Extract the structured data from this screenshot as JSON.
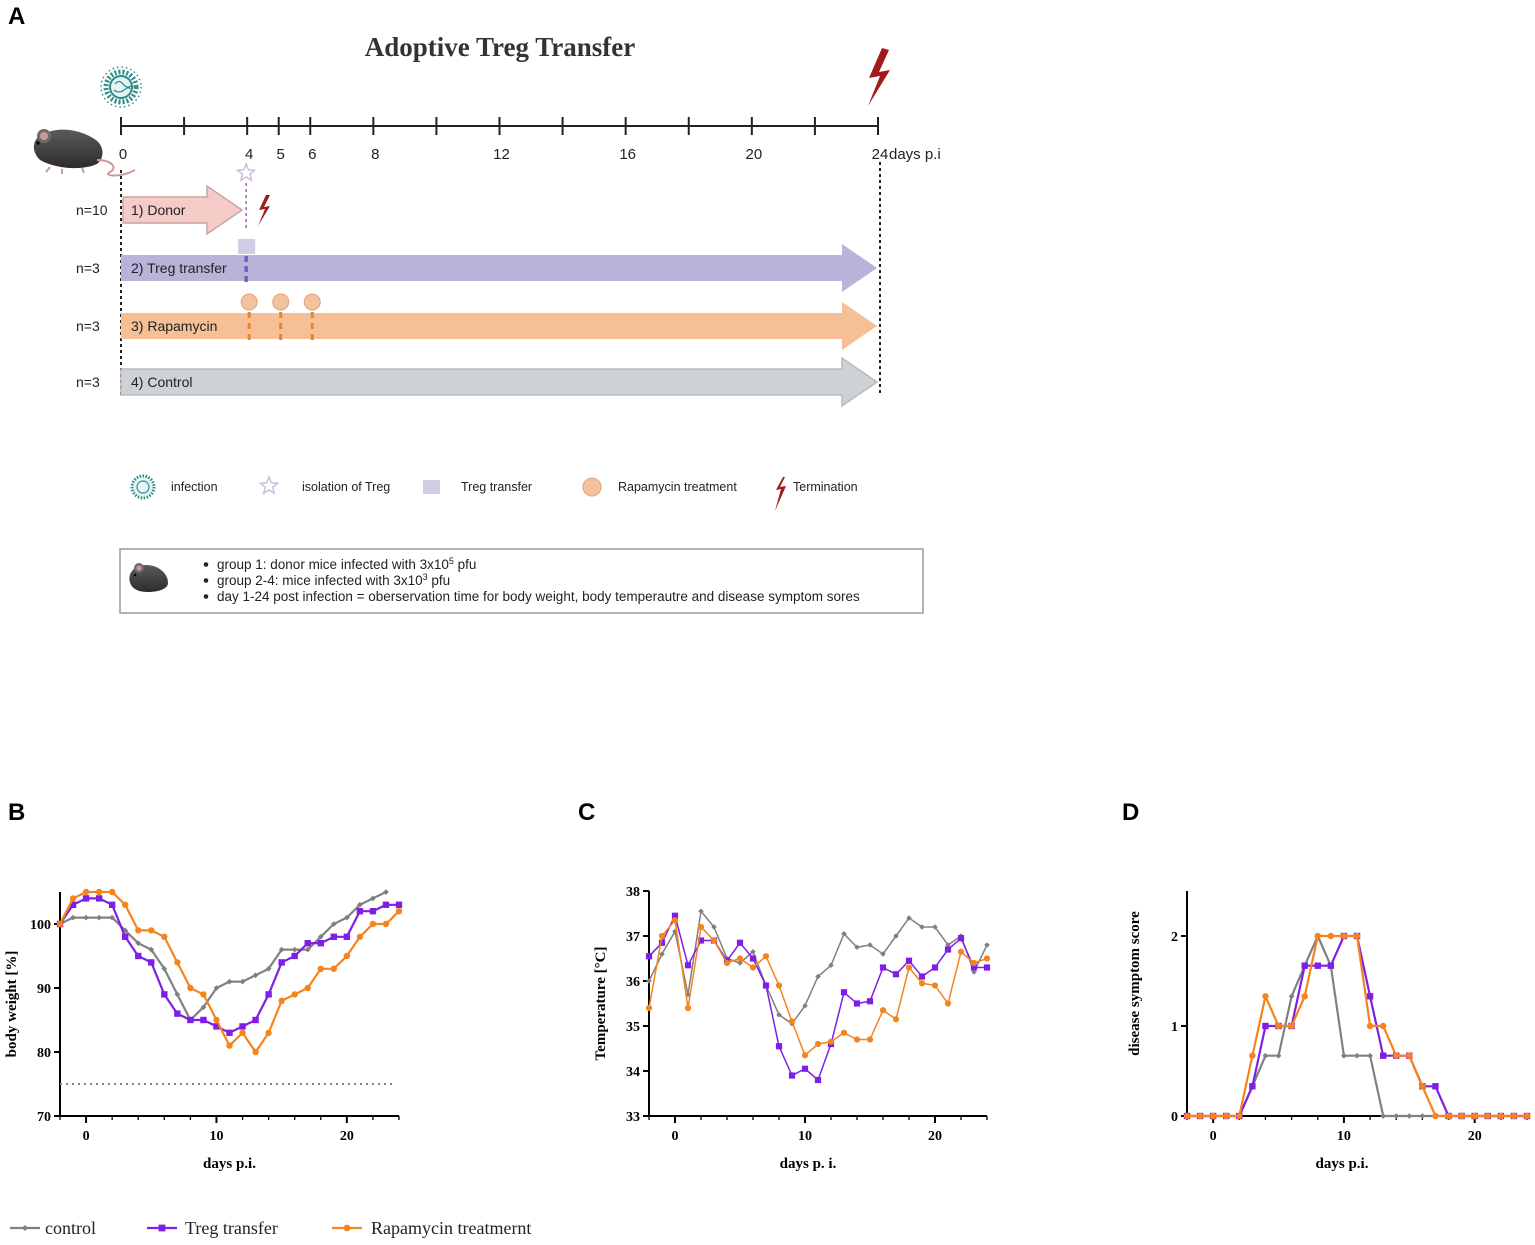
{
  "panelA": {
    "label": "A",
    "title": "Adoptive Treg Transfer",
    "timeline": {
      "ticks": [
        0,
        2,
        4,
        5,
        6,
        8,
        10,
        12,
        14,
        16,
        18,
        20,
        22,
        24
      ],
      "labels": [
        "0",
        "4",
        "5",
        "6",
        "8",
        "12",
        "16",
        "20",
        "24"
      ],
      "label_days": [
        0,
        4,
        5,
        6,
        8,
        12,
        16,
        20,
        24
      ],
      "unit": "days p.i"
    },
    "groups": [
      {
        "n": "n=10",
        "label": "1) Donor",
        "color": "#f4cbc6",
        "end_day": 4
      },
      {
        "n": "n=3",
        "label": "2) Treg transfer",
        "color": "#b8b3d9",
        "end_day": 24
      },
      {
        "n": "n=3",
        "label": "3) Rapamycin",
        "color": "#f6bf95",
        "end_day": 24
      },
      {
        "n": "n=3",
        "label": "4) Control",
        "color": "#ced2d6",
        "end_day": 24
      }
    ],
    "rapamycin_days": [
      4,
      5,
      6
    ],
    "transfer_day": 4,
    "legend": [
      {
        "icon": "virus-icon",
        "label": "infection"
      },
      {
        "icon": "star-icon",
        "label": "isolation of Treg"
      },
      {
        "icon": "square-icon",
        "label": "Treg transfer"
      },
      {
        "icon": "circle-icon",
        "label": "Rapamycin treatment"
      },
      {
        "icon": "lightning-icon",
        "label": "Termination"
      }
    ],
    "notes": [
      {
        "pre": "group 1: donor mice infected with 3x10",
        "sup": "5",
        "post": " pfu"
      },
      {
        "pre": "group 2-4: mice infected with 3x10",
        "sup": "3",
        "post": " pfu"
      },
      {
        "pre": "day 1-24 post infection =  oberservation time for body weight, body temperautre and disease symptom sores",
        "sup": "",
        "post": ""
      }
    ],
    "colors": {
      "virus": "#2e8b8b",
      "lightning": "#9c1c1c",
      "star": "#c8c0dc",
      "square": "#cfcde6",
      "circle": "#f3c19b",
      "donor_line": "#c060c8",
      "treg_line": "#7b5cc0",
      "rapa_line": "#e9852a"
    }
  },
  "legend_bottom": [
    {
      "label": "control",
      "color": "#808080",
      "marker": "diamond"
    },
    {
      "label": "Treg transfer",
      "color": "#7f1fe6",
      "marker": "square"
    },
    {
      "label": "Rapamycin treatmernt",
      "color": "#f5841f",
      "marker": "circle"
    }
  ],
  "chart_data": [
    {
      "panel": "B",
      "type": "line",
      "xlabel": "days p.i.",
      "ylabel": "body weight [%]",
      "xlim": [
        -2,
        24
      ],
      "ylim": [
        70,
        105
      ],
      "xticks": [
        0,
        10,
        20
      ],
      "yticks": [
        70,
        80,
        90,
        100
      ],
      "reference_line": 75,
      "x": [
        -2,
        -1,
        0,
        1,
        2,
        3,
        4,
        5,
        6,
        7,
        8,
        9,
        10,
        11,
        12,
        13,
        14,
        15,
        16,
        17,
        18,
        19,
        20,
        21,
        22,
        23,
        24
      ],
      "series": [
        {
          "name": "control",
          "values": [
            100,
            101,
            101,
            101,
            101,
            99,
            97,
            96,
            93,
            89,
            85,
            87,
            90,
            91,
            91,
            92,
            93,
            96,
            96,
            96,
            98,
            100,
            101,
            103,
            104,
            105,
            null
          ]
        },
        {
          "name": "Treg transfer",
          "values": [
            100,
            103,
            104,
            104,
            103,
            98,
            95,
            94,
            89,
            86,
            85,
            85,
            84,
            83,
            84,
            85,
            89,
            94,
            95,
            97,
            97,
            98,
            98,
            102,
            102,
            103,
            103
          ]
        },
        {
          "name": "Rapamycin treatmernt",
          "values": [
            100,
            104,
            105,
            105,
            105,
            103,
            99,
            99,
            98,
            94,
            90,
            89,
            85,
            81,
            83,
            80,
            83,
            88,
            89,
            90,
            93,
            93,
            95,
            98,
            100,
            100,
            102
          ]
        }
      ]
    },
    {
      "panel": "C",
      "type": "line",
      "xlabel": "days p. i.",
      "ylabel": "Temperature [°C]",
      "xlim": [
        -2,
        24
      ],
      "ylim": [
        33,
        38
      ],
      "xticks": [
        0,
        10,
        20
      ],
      "yticks": [
        33,
        34,
        35,
        36,
        37,
        38
      ],
      "x": [
        -2,
        -1,
        0,
        1,
        2,
        3,
        4,
        5,
        6,
        7,
        8,
        9,
        10,
        11,
        12,
        13,
        14,
        15,
        16,
        17,
        18,
        19,
        20,
        21,
        22,
        23,
        24
      ],
      "series": [
        {
          "name": "control",
          "values": [
            36.0,
            36.6,
            37.1,
            35.7,
            37.55,
            37.2,
            36.5,
            36.4,
            36.65,
            35.9,
            35.25,
            35.05,
            35.45,
            36.1,
            36.35,
            37.05,
            36.75,
            36.8,
            36.6,
            37.0,
            37.4,
            37.2,
            37.2,
            36.8,
            37.0,
            36.2,
            36.8
          ]
        },
        {
          "name": "Treg transfer",
          "values": [
            36.55,
            36.85,
            37.45,
            36.35,
            36.9,
            36.9,
            36.45,
            36.85,
            36.5,
            35.9,
            34.55,
            33.9,
            34.05,
            33.8,
            34.6,
            35.75,
            35.5,
            35.55,
            36.3,
            36.15,
            36.45,
            36.1,
            36.3,
            36.7,
            36.95,
            36.3,
            36.3
          ]
        },
        {
          "name": "Rapamycin treatmernt",
          "values": [
            35.4,
            37.0,
            37.35,
            35.4,
            37.2,
            36.9,
            36.4,
            36.5,
            36.3,
            36.55,
            35.9,
            35.1,
            34.35,
            34.6,
            34.65,
            34.85,
            34.7,
            34.7,
            35.35,
            35.15,
            36.3,
            35.95,
            35.9,
            35.5,
            36.65,
            36.4,
            36.5
          ]
        }
      ]
    },
    {
      "panel": "D",
      "type": "line",
      "xlabel": "days p.i.",
      "ylabel": "disease symptom score",
      "xlim": [
        -2,
        24
      ],
      "ylim": [
        0,
        2.5
      ],
      "xticks": [
        0,
        10,
        20
      ],
      "yticks": [
        0,
        1,
        2
      ],
      "x": [
        -2,
        -1,
        0,
        1,
        2,
        3,
        4,
        5,
        6,
        7,
        8,
        9,
        10,
        11,
        12,
        13,
        14,
        15,
        16,
        17,
        18,
        19,
        20,
        21,
        22,
        23,
        24
      ],
      "series": [
        {
          "name": "control",
          "values": [
            0,
            0,
            0,
            0,
            0,
            0.33,
            0.67,
            0.67,
            1.33,
            1.67,
            2,
            1.67,
            0.67,
            0.67,
            0.67,
            0,
            0,
            0,
            0,
            0,
            0,
            0,
            0,
            0,
            0,
            0,
            0
          ]
        },
        {
          "name": "Treg transfer",
          "values": [
            0,
            0,
            0,
            0,
            0,
            0.33,
            1,
            1,
            1,
            1.67,
            1.67,
            1.67,
            2,
            2,
            1.33,
            0.67,
            0.67,
            0.67,
            0.33,
            0.33,
            0,
            0,
            0,
            0,
            0,
            0,
            0
          ]
        },
        {
          "name": "Rapamycin treatmernt",
          "values": [
            0,
            0,
            0,
            0,
            0,
            0.67,
            1.33,
            1,
            1,
            1.33,
            2,
            2,
            2,
            2,
            1,
            1,
            0.67,
            0.67,
            0.33,
            0,
            0,
            0,
            0,
            0,
            0,
            0,
            0
          ]
        }
      ]
    }
  ]
}
